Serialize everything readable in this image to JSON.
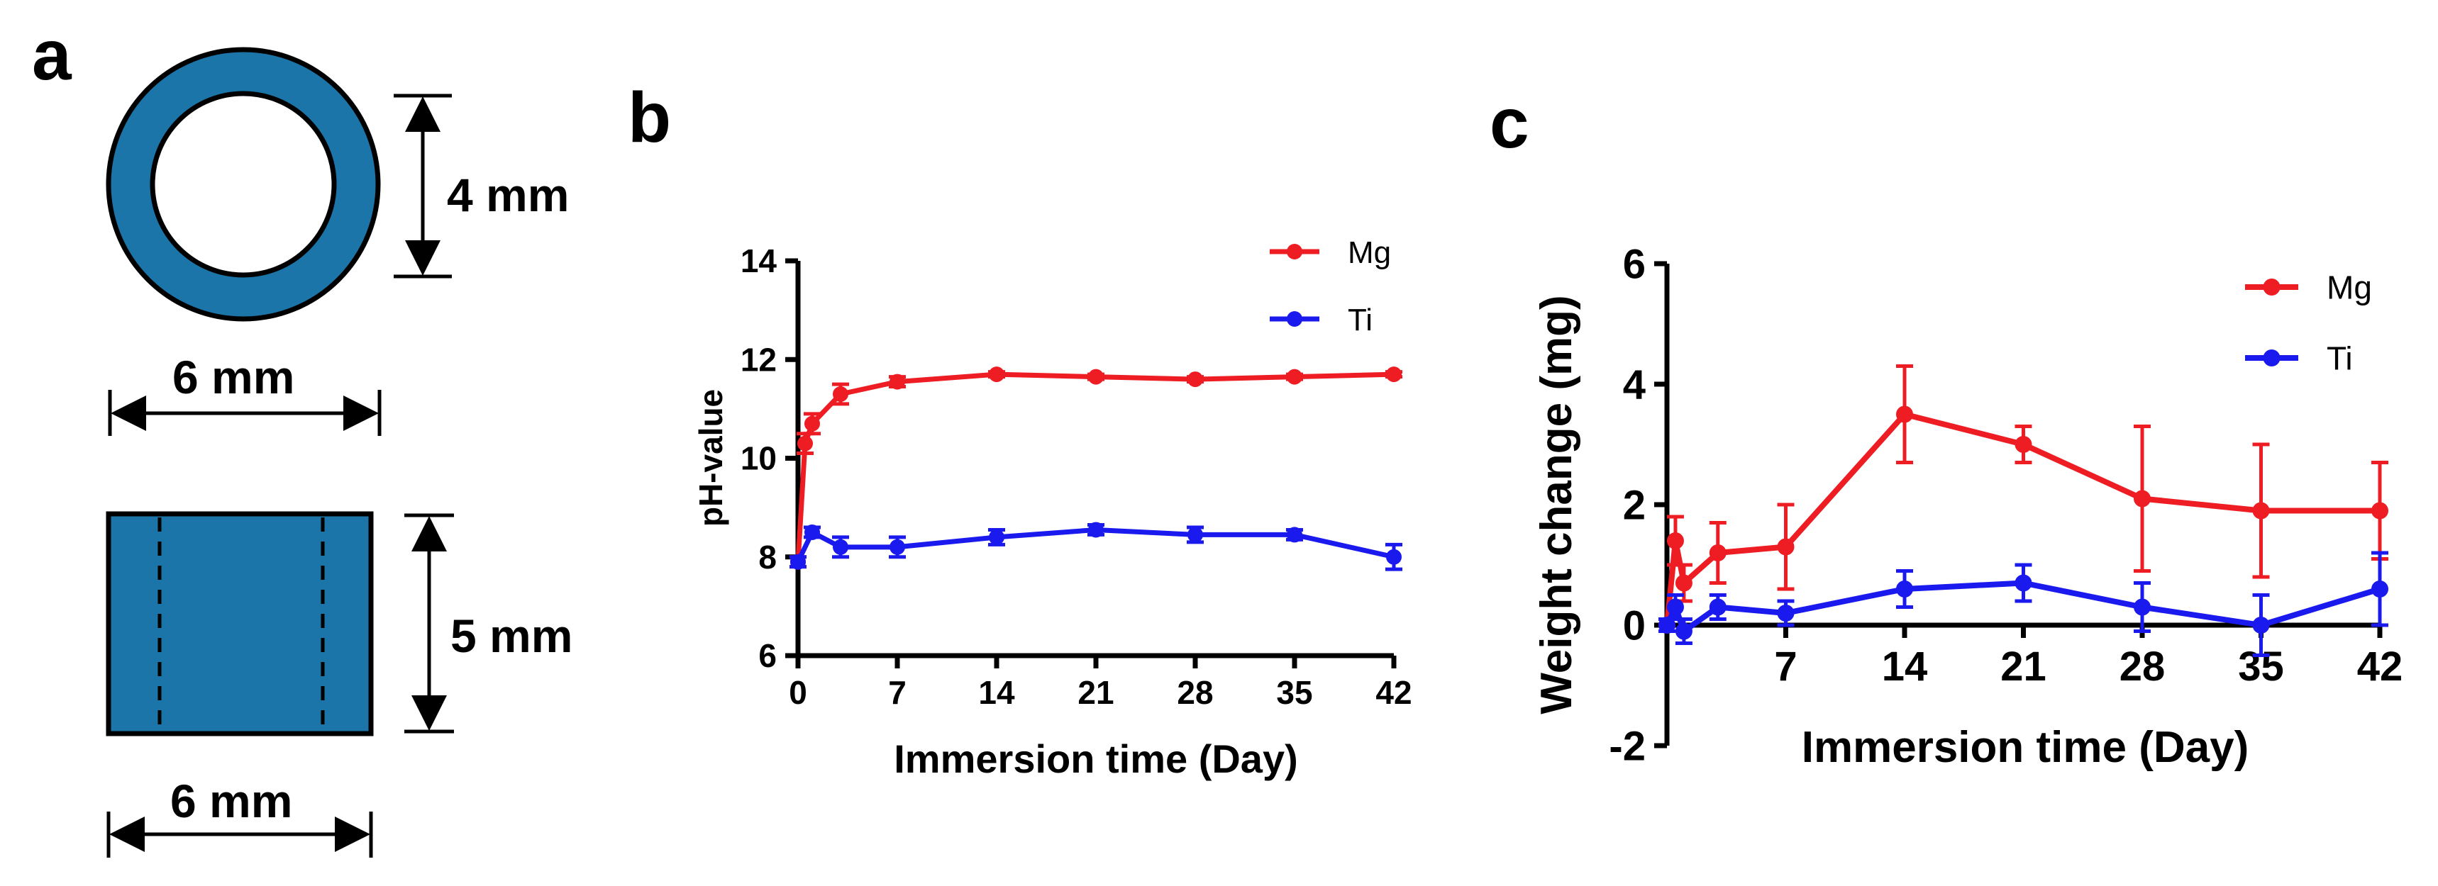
{
  "panel_labels": {
    "a": "a",
    "b": "b",
    "c": "c"
  },
  "schematic": {
    "ring_height": "4 mm",
    "ring_width": "6 mm",
    "cyl_height": "5 mm",
    "cyl_width": "6 mm",
    "fill_color": "#1b75a8",
    "line_color": "#000000"
  },
  "chart_data": [
    {
      "type": "line",
      "panel": "b",
      "xlabel": "Immersion time (Day)",
      "ylabel": "pH-value",
      "xlim": [
        0,
        42
      ],
      "ylim": [
        6,
        14
      ],
      "xticks": [
        "0",
        "7",
        "14",
        "21",
        "28",
        "35",
        "42"
      ],
      "yticks": [
        "6",
        "8",
        "10",
        "12",
        "14"
      ],
      "legend_position": "top-right",
      "series": [
        {
          "name": "Mg",
          "color": "#ee1c23",
          "x": [
            0,
            0.5,
            1,
            3,
            7,
            14,
            21,
            28,
            35,
            42
          ],
          "y": [
            7.9,
            10.3,
            10.7,
            11.3,
            11.55,
            11.7,
            11.65,
            11.6,
            11.65,
            11.7
          ],
          "err": [
            0.1,
            0.2,
            0.2,
            0.2,
            0.1,
            0.05,
            0.05,
            0.05,
            0.05,
            0.05
          ]
        },
        {
          "name": "Ti",
          "color": "#1a1aee",
          "x": [
            0,
            1,
            3,
            7,
            14,
            21,
            28,
            35,
            42
          ],
          "y": [
            7.9,
            8.5,
            8.2,
            8.2,
            8.4,
            8.55,
            8.45,
            8.45,
            8.0
          ],
          "err": [
            0.1,
            0.1,
            0.2,
            0.2,
            0.15,
            0.1,
            0.15,
            0.1,
            0.25
          ]
        }
      ]
    },
    {
      "type": "line",
      "panel": "c",
      "xlabel": "Immersion time (Day)",
      "ylabel": "Weight change (mg)",
      "xlim": [
        0,
        42
      ],
      "ylim": [
        -2,
        6
      ],
      "xticks": [
        "7",
        "14",
        "21",
        "28",
        "35",
        "42"
      ],
      "yticks": [
        "-2",
        "0",
        "2",
        "4",
        "6"
      ],
      "legend_position": "top-right",
      "series": [
        {
          "name": "Mg",
          "color": "#ee1c23",
          "x": [
            0,
            0.5,
            1,
            3,
            7,
            14,
            21,
            28,
            35,
            42
          ],
          "y": [
            0.0,
            1.4,
            0.7,
            1.2,
            1.3,
            3.5,
            3.0,
            2.1,
            1.9,
            1.9
          ],
          "err": [
            0.1,
            0.4,
            0.3,
            0.5,
            0.7,
            0.8,
            0.3,
            1.2,
            1.1,
            0.8
          ]
        },
        {
          "name": "Ti",
          "color": "#1a1aee",
          "x": [
            0,
            0.5,
            1,
            3,
            7,
            14,
            21,
            28,
            35,
            42
          ],
          "y": [
            0.0,
            0.3,
            -0.1,
            0.3,
            0.2,
            0.6,
            0.7,
            0.3,
            0.0,
            0.6
          ],
          "err": [
            0.1,
            0.2,
            0.2,
            0.2,
            0.2,
            0.3,
            0.3,
            0.4,
            0.5,
            0.6
          ]
        }
      ]
    }
  ]
}
